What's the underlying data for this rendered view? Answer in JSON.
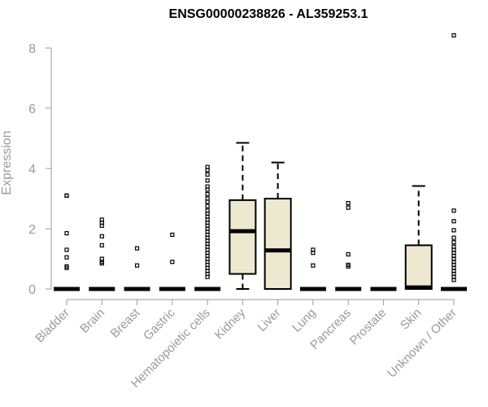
{
  "chart_data": {
    "type": "boxplot",
    "title": "ENSG00000238826 - AL359253.1",
    "xlabel": "",
    "ylabel": "Expression",
    "ylim": [
      0,
      8.5
    ],
    "yticks": [
      0,
      2,
      4,
      6,
      8
    ],
    "grid": false,
    "legend": "none",
    "colors": {
      "box_fill": "#ede8d0",
      "stroke": "#000000",
      "axis": "#9a9a9a"
    },
    "categories": [
      "Bladder",
      "Brain",
      "Breast",
      "Gastric",
      "Hematopoietic cells",
      "Kidney",
      "Liver",
      "Lung",
      "Pancreas",
      "Prostate",
      "Skin",
      "Unknown / Other"
    ],
    "boxes": [
      {
        "category": "Bladder",
        "min": 0,
        "q1": 0,
        "median": 0,
        "q3": 0,
        "max": 0,
        "outliers": [
          3.1,
          3.1,
          1.85,
          1.3,
          1.05,
          0.75,
          0.7
        ]
      },
      {
        "category": "Brain",
        "min": 0,
        "q1": 0,
        "median": 0,
        "q3": 0,
        "max": 0,
        "outliers": [
          2.3,
          2.2,
          2.1,
          1.75,
          1.45,
          1.0,
          0.9,
          0.85
        ]
      },
      {
        "category": "Breast",
        "min": 0,
        "q1": 0,
        "median": 0,
        "q3": 0,
        "max": 0,
        "outliers": [
          1.35,
          0.78
        ]
      },
      {
        "category": "Gastric",
        "min": 0,
        "q1": 0,
        "median": 0,
        "q3": 0,
        "max": 0,
        "outliers": [
          1.8,
          0.9
        ]
      },
      {
        "category": "Hematopoietic cells",
        "min": 0,
        "q1": 0,
        "median": 0,
        "q3": 0,
        "max": 0,
        "outliers": [
          4.05,
          3.95,
          3.8,
          3.6,
          3.4,
          3.3,
          3.15,
          3.0,
          2.9,
          2.75,
          2.6,
          2.5,
          2.4,
          2.3,
          2.2,
          2.1,
          2.0,
          1.9,
          1.8,
          1.7,
          1.6,
          1.5,
          1.4,
          1.3,
          1.2,
          1.1,
          1.0,
          0.9,
          0.8,
          0.7,
          0.6,
          0.5,
          0.4
        ]
      },
      {
        "category": "Kidney",
        "min": 0.0,
        "q1": 0.5,
        "median": 1.92,
        "q3": 2.95,
        "max": 4.85,
        "outliers": []
      },
      {
        "category": "Liver",
        "min": 0.0,
        "q1": 0.0,
        "median": 1.28,
        "q3": 3.0,
        "max": 4.2,
        "outliers": []
      },
      {
        "category": "Lung",
        "min": 0,
        "q1": 0,
        "median": 0,
        "q3": 0,
        "max": 0,
        "outliers": [
          1.3,
          1.2,
          0.78
        ]
      },
      {
        "category": "Pancreas",
        "min": 0,
        "q1": 0,
        "median": 0,
        "q3": 0,
        "max": 0,
        "outliers": [
          2.85,
          2.7,
          1.15,
          0.8,
          0.75
        ]
      },
      {
        "category": "Prostate",
        "min": 0,
        "q1": 0,
        "median": 0,
        "q3": 0,
        "max": 0,
        "outliers": []
      },
      {
        "category": "Skin",
        "min": 0.0,
        "q1": 0.0,
        "median": 0.05,
        "q3": 1.45,
        "max": 3.42,
        "outliers": []
      },
      {
        "category": "Unknown / Other",
        "min": 0,
        "q1": 0,
        "median": 0,
        "q3": 0,
        "max": 0,
        "outliers": [
          8.42,
          2.6,
          2.25,
          1.95,
          1.7,
          1.55,
          1.4,
          1.3,
          1.2,
          1.1,
          1.0,
          0.9,
          0.8,
          0.7,
          0.6,
          0.5,
          0.4,
          0.3
        ]
      }
    ]
  }
}
